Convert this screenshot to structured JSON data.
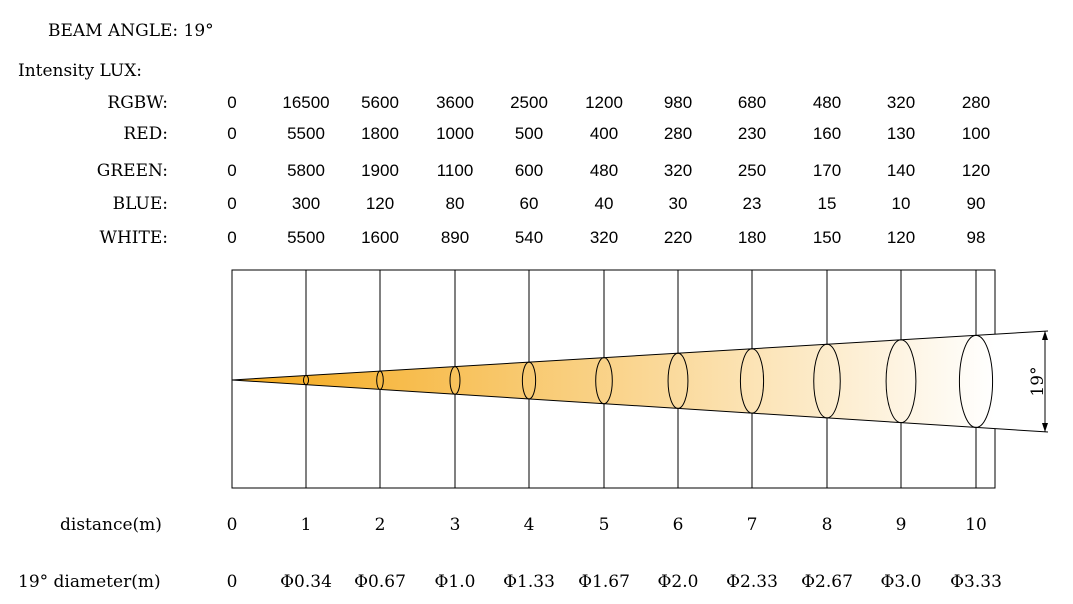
{
  "header": {
    "beam_angle": "BEAM ANGLE: 19°",
    "intensity_label": "Intensity LUX:"
  },
  "intensity_table": [
    {
      "label": "RGBW:",
      "values": [
        "0",
        "16500",
        "5600",
        "3600",
        "2500",
        "1200",
        "980",
        "680",
        "480",
        "320",
        "280"
      ]
    },
    {
      "label": "RED:",
      "values": [
        "0",
        "5500",
        "1800",
        "1000",
        "500",
        "400",
        "280",
        "230",
        "160",
        "130",
        "100"
      ]
    },
    {
      "label": "GREEN:",
      "values": [
        "0",
        "5800",
        "1900",
        "1100",
        "600",
        "480",
        "320",
        "250",
        "170",
        "140",
        "120"
      ]
    },
    {
      "label": "BLUE:",
      "values": [
        "0",
        "300",
        "120",
        "80",
        "60",
        "40",
        "30",
        "23",
        "15",
        "10",
        "90"
      ]
    },
    {
      "label": "WHITE:",
      "values": [
        "0",
        "5500",
        "1600",
        "890",
        "540",
        "320",
        "220",
        "180",
        "150",
        "120",
        "98"
      ]
    }
  ],
  "beam_diagram": {
    "angle_label": "19°",
    "angle_degrees": 19,
    "gradient_start": "#f5a91a",
    "gradient_end": "#ffffff",
    "line_color": "#000000"
  },
  "distance": {
    "label": "distance(m)",
    "values": [
      "0",
      "1",
      "2",
      "3",
      "4",
      "5",
      "6",
      "7",
      "8",
      "9",
      "10"
    ]
  },
  "diameter": {
    "label": "19° diameter(m)",
    "values": [
      "0",
      "Φ0.34",
      "Φ0.67",
      "Φ1.0",
      "Φ1.33",
      "Φ1.67",
      "Φ2.0",
      "Φ2.33",
      "Φ2.67",
      "Φ3.0",
      "Φ3.33"
    ]
  }
}
